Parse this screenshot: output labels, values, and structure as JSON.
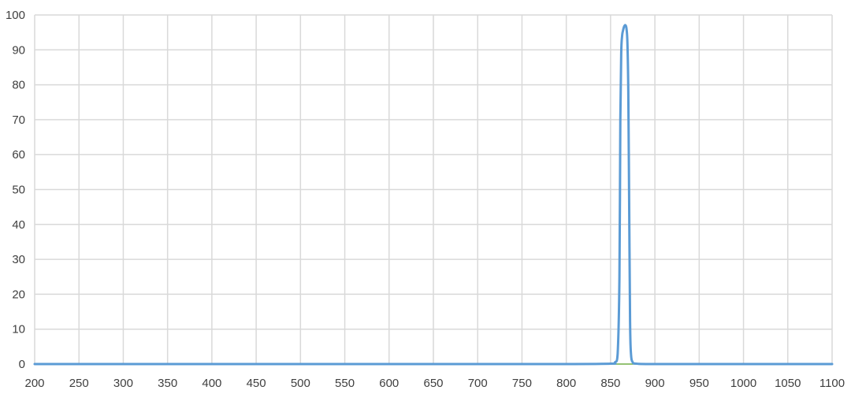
{
  "chart_data": {
    "type": "line",
    "title": "",
    "xlabel": "",
    "ylabel": "",
    "xlim": [
      200,
      1100
    ],
    "ylim": [
      0,
      100
    ],
    "x_ticks": [
      200,
      250,
      300,
      350,
      400,
      450,
      500,
      550,
      600,
      650,
      700,
      750,
      800,
      850,
      900,
      950,
      1000,
      1050,
      1100
    ],
    "y_ticks": [
      0,
      10,
      20,
      30,
      40,
      50,
      60,
      70,
      80,
      90,
      100
    ],
    "grid": true,
    "legend": "none",
    "colors": {
      "line": "#5b9bd5",
      "baseline": "#70ad47",
      "grid": "#d9d9d9",
      "text": "#3f3f3f"
    },
    "series": [
      {
        "x": [
          200,
          300,
          400,
          500,
          600,
          700,
          800,
          850,
          855,
          858,
          860,
          861,
          862,
          863,
          864,
          865,
          866,
          867,
          868,
          869,
          870,
          871,
          872,
          873,
          875,
          880,
          900,
          1000,
          1100
        ],
        "y": [
          0,
          0,
          0,
          0,
          0,
          0,
          0,
          0.1,
          0.5,
          3,
          25,
          70,
          89,
          94,
          95.5,
          96.5,
          97,
          97,
          96,
          92,
          78,
          45,
          12,
          3,
          0.5,
          0.1,
          0,
          0,
          0
        ]
      }
    ]
  }
}
